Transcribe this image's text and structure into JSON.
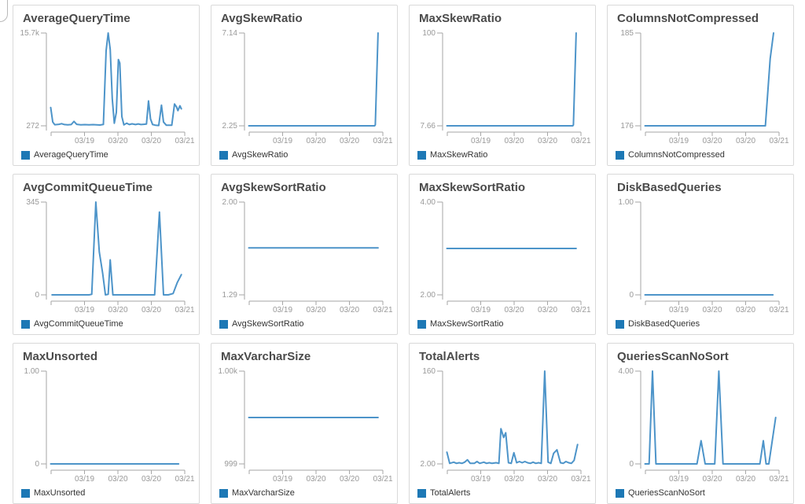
{
  "colors": {
    "line": "#4d94c9",
    "legend_swatch": "#1d78b5",
    "axis": "#a6a6a6",
    "tick_label": "#999999",
    "title_text": "#4a4a4a",
    "panel_border": "#d9d9d9"
  },
  "chart_data": [
    {
      "type": "line",
      "title": "AverageQueryTime",
      "legend": "AverageQueryTime",
      "ylim": [
        272,
        15700
      ],
      "y_tick_labels": {
        "max": "15.7k",
        "min": "272"
      },
      "x_tick_labels": [
        "03/19",
        "03/20",
        "03/20",
        "03/21"
      ],
      "series": [
        {
          "name": "AverageQueryTime",
          "points": [
            [
              0.02,
              3300
            ],
            [
              0.035,
              900
            ],
            [
              0.05,
              450
            ],
            [
              0.08,
              520
            ],
            [
              0.1,
              620
            ],
            [
              0.12,
              480
            ],
            [
              0.145,
              430
            ],
            [
              0.17,
              480
            ],
            [
              0.19,
              1000
            ],
            [
              0.21,
              520
            ],
            [
              0.24,
              430
            ],
            [
              0.27,
              470
            ],
            [
              0.3,
              430
            ],
            [
              0.33,
              470
            ],
            [
              0.355,
              430
            ],
            [
              0.38,
              400
            ],
            [
              0.405,
              500
            ],
            [
              0.425,
              12800
            ],
            [
              0.44,
              15700
            ],
            [
              0.455,
              13000
            ],
            [
              0.47,
              4800
            ],
            [
              0.485,
              700
            ],
            [
              0.5,
              2500
            ],
            [
              0.515,
              11300
            ],
            [
              0.525,
              10700
            ],
            [
              0.54,
              1800
            ],
            [
              0.555,
              430
            ],
            [
              0.575,
              700
            ],
            [
              0.595,
              480
            ],
            [
              0.615,
              600
            ],
            [
              0.64,
              480
            ],
            [
              0.66,
              580
            ],
            [
              0.68,
              480
            ],
            [
              0.7,
              520
            ],
            [
              0.72,
              560
            ],
            [
              0.735,
              4400
            ],
            [
              0.75,
              1400
            ],
            [
              0.765,
              480
            ],
            [
              0.785,
              380
            ],
            [
              0.81,
              330
            ],
            [
              0.83,
              3700
            ],
            [
              0.845,
              900
            ],
            [
              0.865,
              380
            ],
            [
              0.885,
              360
            ],
            [
              0.905,
              380
            ],
            [
              0.925,
              3900
            ],
            [
              0.94,
              3400
            ],
            [
              0.95,
              2800
            ],
            [
              0.965,
              3600
            ],
            [
              0.975,
              3100
            ]
          ]
        }
      ]
    },
    {
      "type": "line",
      "title": "AvgSkewRatio",
      "legend": "AvgSkewRatio",
      "ylim": [
        2.25,
        7.14
      ],
      "y_tick_labels": {
        "max": "7.14",
        "min": "2.25"
      },
      "x_tick_labels": [
        "03/19",
        "03/20",
        "03/20",
        "03/21"
      ],
      "series": [
        {
          "name": "AvgSkewRatio",
          "points": [
            [
              0.02,
              2.25
            ],
            [
              0.94,
              2.25
            ],
            [
              0.945,
              2.3
            ],
            [
              0.965,
              7.14
            ]
          ]
        }
      ]
    },
    {
      "type": "line",
      "title": "MaxSkewRatio",
      "legend": "MaxSkewRatio",
      "ylim": [
        7.66,
        100
      ],
      "y_tick_labels": {
        "max": "100",
        "min": "7.66"
      },
      "x_tick_labels": [
        "03/19",
        "03/20",
        "03/20",
        "03/21"
      ],
      "series": [
        {
          "name": "MaxSkewRatio",
          "points": [
            [
              0.02,
              7.66
            ],
            [
              0.94,
              7.66
            ],
            [
              0.945,
              8.5
            ],
            [
              0.965,
              100
            ]
          ]
        }
      ]
    },
    {
      "type": "line",
      "title": "ColumnsNotCompressed",
      "legend": "ColumnsNotCompressed",
      "ylim": [
        176,
        185
      ],
      "y_tick_labels": {
        "max": "185",
        "min": "176"
      },
      "x_tick_labels": [
        "03/19",
        "03/20",
        "03/20",
        "03/21"
      ],
      "series": [
        {
          "name": "ColumnsNotCompressed",
          "points": [
            [
              0.02,
              176
            ],
            [
              0.9,
              176
            ],
            [
              0.935,
              182.5
            ],
            [
              0.96,
              185
            ]
          ]
        }
      ]
    },
    {
      "type": "line",
      "title": "AvgCommitQueueTime",
      "legend": "AvgCommitQueueTime",
      "ylim": [
        0,
        345
      ],
      "y_tick_labels": {
        "max": "345",
        "min": "0"
      },
      "x_tick_labels": [
        "03/19",
        "03/20",
        "03/20",
        "03/21"
      ],
      "series": [
        {
          "name": "AvgCommitQueueTime",
          "points": [
            [
              0.03,
              0
            ],
            [
              0.3,
              0
            ],
            [
              0.32,
              2
            ],
            [
              0.35,
              345
            ],
            [
              0.375,
              160
            ],
            [
              0.4,
              80
            ],
            [
              0.42,
              0
            ],
            [
              0.44,
              2
            ],
            [
              0.455,
              130
            ],
            [
              0.475,
              0
            ],
            [
              0.52,
              0
            ],
            [
              0.78,
              0
            ],
            [
              0.815,
              308
            ],
            [
              0.845,
              0
            ],
            [
              0.88,
              0
            ],
            [
              0.915,
              5
            ],
            [
              0.945,
              45
            ],
            [
              0.975,
              75
            ]
          ]
        }
      ]
    },
    {
      "type": "line",
      "title": "AvgSkewSortRatio",
      "legend": "AvgSkewSortRatio",
      "ylim": [
        1.29,
        2.0
      ],
      "y_tick_labels": {
        "max": "2.00",
        "min": "1.29"
      },
      "x_tick_labels": [
        "03/19",
        "03/20",
        "03/20",
        "03/21"
      ],
      "series": [
        {
          "name": "AvgSkewSortRatio",
          "points": [
            [
              0.02,
              1.65
            ],
            [
              0.965,
              1.65
            ]
          ]
        }
      ]
    },
    {
      "type": "line",
      "title": "MaxSkewSortRatio",
      "legend": "MaxSkewSortRatio",
      "ylim": [
        2.0,
        4.0
      ],
      "y_tick_labels": {
        "max": "4.00",
        "min": "2.00"
      },
      "x_tick_labels": [
        "03/19",
        "03/20",
        "03/20",
        "03/21"
      ],
      "series": [
        {
          "name": "MaxSkewSortRatio",
          "points": [
            [
              0.02,
              3.0
            ],
            [
              0.965,
              3.0
            ]
          ]
        }
      ]
    },
    {
      "type": "line",
      "title": "DiskBasedQueries",
      "legend": "DiskBasedQueries",
      "ylim": [
        0,
        1.0
      ],
      "y_tick_labels": {
        "max": "1.00",
        "min": "0"
      },
      "x_tick_labels": [
        "03/19",
        "03/20",
        "03/20",
        "03/21"
      ],
      "series": [
        {
          "name": "DiskBasedQueries",
          "points": [
            [
              0.02,
              0
            ],
            [
              0.955,
              0
            ]
          ]
        }
      ]
    },
    {
      "type": "line",
      "title": "MaxUnsorted",
      "legend": "MaxUnsorted",
      "ylim": [
        0,
        1.0
      ],
      "y_tick_labels": {
        "max": "1.00",
        "min": "0"
      },
      "x_tick_labels": [
        "03/19",
        "03/20",
        "03/20",
        "03/21"
      ],
      "series": [
        {
          "name": "MaxUnsorted",
          "points": [
            [
              0.02,
              0
            ],
            [
              0.955,
              0
            ]
          ]
        }
      ]
    },
    {
      "type": "line",
      "title": "MaxVarcharSize",
      "legend": "MaxVarcharSize",
      "ylim": [
        999,
        1000
      ],
      "y_tick_labels": {
        "max": "1.00k",
        "min": "999"
      },
      "x_tick_labels": [
        "03/19",
        "03/20",
        "03/20",
        "03/21"
      ],
      "series": [
        {
          "name": "MaxVarcharSize",
          "points": [
            [
              0.02,
              999.5
            ],
            [
              0.965,
              999.5
            ]
          ]
        }
      ]
    },
    {
      "type": "line",
      "title": "TotalAlerts",
      "legend": "TotalAlerts",
      "ylim": [
        2,
        160
      ],
      "y_tick_labels": {
        "max": "160",
        "min": "2.00"
      },
      "x_tick_labels": [
        "03/19",
        "03/20",
        "03/20",
        "03/21"
      ],
      "series": [
        {
          "name": "TotalAlerts",
          "points": [
            [
              0.02,
              22
            ],
            [
              0.04,
              3
            ],
            [
              0.07,
              5
            ],
            [
              0.09,
              3
            ],
            [
              0.11,
              4
            ],
            [
              0.13,
              3
            ],
            [
              0.15,
              5
            ],
            [
              0.17,
              9
            ],
            [
              0.19,
              3
            ],
            [
              0.22,
              3
            ],
            [
              0.24,
              6
            ],
            [
              0.26,
              3
            ],
            [
              0.29,
              5
            ],
            [
              0.31,
              3
            ],
            [
              0.33,
              4
            ],
            [
              0.35,
              3
            ],
            [
              0.38,
              4
            ],
            [
              0.4,
              3
            ],
            [
              0.415,
              62
            ],
            [
              0.435,
              47
            ],
            [
              0.45,
              55
            ],
            [
              0.47,
              4
            ],
            [
              0.49,
              3
            ],
            [
              0.51,
              21
            ],
            [
              0.53,
              4
            ],
            [
              0.55,
              6
            ],
            [
              0.57,
              4
            ],
            [
              0.59,
              6
            ],
            [
              0.61,
              4
            ],
            [
              0.63,
              3
            ],
            [
              0.65,
              5
            ],
            [
              0.67,
              3
            ],
            [
              0.69,
              4
            ],
            [
              0.71,
              3
            ],
            [
              0.735,
              160
            ],
            [
              0.76,
              5
            ],
            [
              0.78,
              3
            ],
            [
              0.8,
              20
            ],
            [
              0.825,
              26
            ],
            [
              0.85,
              4
            ],
            [
              0.87,
              3
            ],
            [
              0.89,
              6
            ],
            [
              0.91,
              4
            ],
            [
              0.93,
              3
            ],
            [
              0.95,
              8
            ],
            [
              0.975,
              35
            ]
          ]
        }
      ]
    },
    {
      "type": "line",
      "title": "QueriesScanNoSort",
      "legend": "QueriesScanNoSort",
      "ylim": [
        0,
        4.0
      ],
      "y_tick_labels": {
        "max": "4.00",
        "min": "0"
      },
      "x_tick_labels": [
        "03/19",
        "03/20",
        "03/20",
        "03/21"
      ],
      "series": [
        {
          "name": "QueriesScanNoSort",
          "points": [
            [
              0.02,
              0
            ],
            [
              0.05,
              0
            ],
            [
              0.075,
              4
            ],
            [
              0.1,
              0
            ],
            [
              0.4,
              0
            ],
            [
              0.43,
              1
            ],
            [
              0.46,
              0
            ],
            [
              0.53,
              0
            ],
            [
              0.56,
              4
            ],
            [
              0.59,
              0
            ],
            [
              0.86,
              0
            ],
            [
              0.885,
              1
            ],
            [
              0.905,
              0
            ],
            [
              0.925,
              0
            ],
            [
              0.975,
              2
            ]
          ]
        }
      ]
    }
  ]
}
